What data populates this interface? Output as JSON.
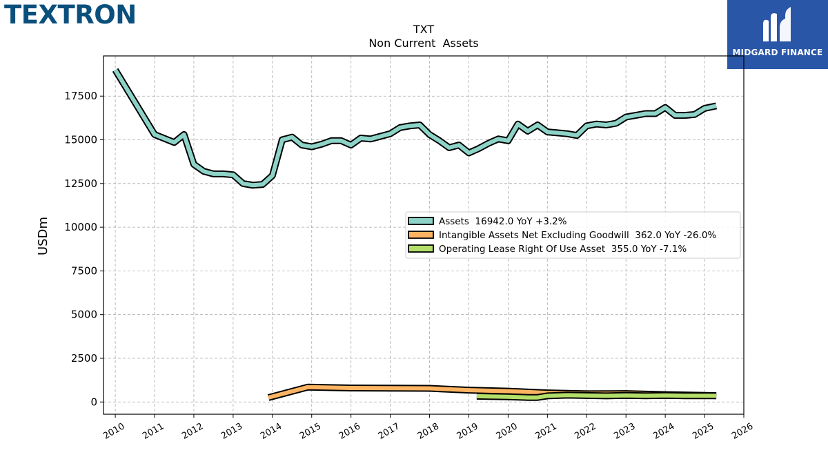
{
  "header": {
    "company_logo_text": "TEXTRON",
    "brand_logo_text": "MIDGARD FINANCE"
  },
  "colors": {
    "company": "#0b4f7c",
    "brand": "#2a56a8",
    "assets": "#8dd3c7",
    "intangible": "#fdb462",
    "lease": "#b3de69"
  },
  "chart_data": {
    "type": "line",
    "title": "TXT",
    "subtitle": "Non Current  Assets",
    "ylabel": "USDm",
    "xlabel": "",
    "xlim": [
      2009.7,
      2026.0
    ],
    "ylim": [
      -700,
      19800
    ],
    "yticks": [
      0,
      2500,
      5000,
      7500,
      10000,
      12500,
      15000,
      17500
    ],
    "xticks": [
      2010,
      2011,
      2012,
      2013,
      2014,
      2015,
      2016,
      2017,
      2018,
      2019,
      2020,
      2021,
      2022,
      2023,
      2024,
      2025,
      2026
    ],
    "grid": true,
    "legend_position": "center-right",
    "series": [
      {
        "name": "Assets  16942.0 YoY +3.2%",
        "color": "#8dd3c7",
        "points": [
          [
            2010.0,
            19000
          ],
          [
            2011.0,
            15300
          ],
          [
            2011.5,
            14850
          ],
          [
            2011.75,
            15300
          ],
          [
            2012.0,
            13600
          ],
          [
            2012.25,
            13200
          ],
          [
            2012.5,
            13050
          ],
          [
            2012.75,
            13050
          ],
          [
            2013.0,
            13000
          ],
          [
            2013.25,
            12500
          ],
          [
            2013.5,
            12400
          ],
          [
            2013.75,
            12450
          ],
          [
            2014.0,
            12950
          ],
          [
            2014.25,
            15000
          ],
          [
            2014.5,
            15150
          ],
          [
            2014.75,
            14700
          ],
          [
            2015.0,
            14600
          ],
          [
            2015.25,
            14750
          ],
          [
            2015.5,
            14950
          ],
          [
            2015.75,
            14950
          ],
          [
            2016.0,
            14700
          ],
          [
            2016.25,
            15100
          ],
          [
            2016.5,
            15050
          ],
          [
            2016.75,
            15200
          ],
          [
            2017.0,
            15350
          ],
          [
            2017.25,
            15700
          ],
          [
            2017.5,
            15800
          ],
          [
            2017.75,
            15850
          ],
          [
            2018.0,
            15300
          ],
          [
            2018.25,
            14950
          ],
          [
            2018.5,
            14550
          ],
          [
            2018.75,
            14700
          ],
          [
            2019.0,
            14250
          ],
          [
            2019.25,
            14500
          ],
          [
            2019.5,
            14800
          ],
          [
            2019.75,
            15050
          ],
          [
            2020.0,
            14950
          ],
          [
            2020.25,
            15900
          ],
          [
            2020.5,
            15500
          ],
          [
            2020.75,
            15850
          ],
          [
            2021.0,
            15450
          ],
          [
            2021.25,
            15400
          ],
          [
            2021.5,
            15350
          ],
          [
            2021.75,
            15250
          ],
          [
            2022.0,
            15800
          ],
          [
            2022.25,
            15900
          ],
          [
            2022.5,
            15850
          ],
          [
            2022.75,
            15950
          ],
          [
            2023.0,
            16300
          ],
          [
            2023.25,
            16400
          ],
          [
            2023.5,
            16500
          ],
          [
            2023.75,
            16500
          ],
          [
            2024.0,
            16850
          ],
          [
            2024.25,
            16400
          ],
          [
            2024.5,
            16400
          ],
          [
            2024.75,
            16450
          ],
          [
            2025.0,
            16800
          ],
          [
            2025.3,
            16942
          ]
        ]
      },
      {
        "name": "Intangible Assets Net Excluding Goodwill  362.0 YoY -26.0%",
        "color": "#fdb462",
        "points": [
          [
            2013.9,
            250
          ],
          [
            2014.9,
            850
          ],
          [
            2016.0,
            800
          ],
          [
            2017.0,
            790
          ],
          [
            2018.0,
            780
          ],
          [
            2019.0,
            680
          ],
          [
            2020.0,
            620
          ],
          [
            2021.0,
            520
          ],
          [
            2022.0,
            470
          ],
          [
            2023.0,
            480
          ],
          [
            2024.0,
            420
          ],
          [
            2025.3,
            362
          ]
        ]
      },
      {
        "name": "Operating Lease Right Of Use Asset  355.0 YoY -7.1%",
        "color": "#b3de69",
        "points": [
          [
            2019.2,
            330
          ],
          [
            2019.5,
            320
          ],
          [
            2020.0,
            300
          ],
          [
            2020.5,
            260
          ],
          [
            2020.75,
            260
          ],
          [
            2021.0,
            350
          ],
          [
            2021.5,
            390
          ],
          [
            2022.0,
            370
          ],
          [
            2022.5,
            350
          ],
          [
            2023.0,
            380
          ],
          [
            2023.5,
            360
          ],
          [
            2024.0,
            380
          ],
          [
            2024.5,
            360
          ],
          [
            2025.0,
            360
          ],
          [
            2025.3,
            355
          ]
        ]
      }
    ]
  }
}
